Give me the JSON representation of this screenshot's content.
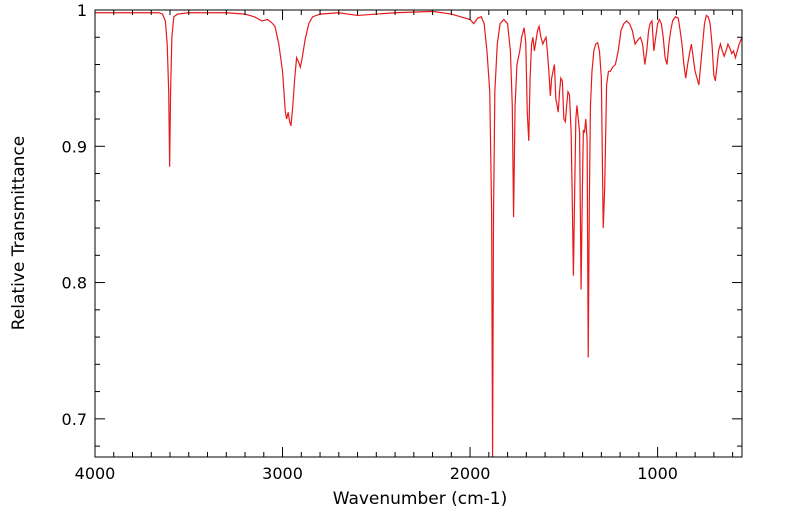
{
  "chart_data": {
    "type": "line",
    "title": "",
    "xlabel": "Wavenumber (cm-1)",
    "ylabel": "Relative Transmittance",
    "xlim": [
      4000,
      550
    ],
    "ylim": [
      0.672,
      1.0
    ],
    "x_reversed": true,
    "grid": false,
    "x_ticks": [
      4000,
      3000,
      2000,
      1000
    ],
    "x_tick_labels": [
      "4000",
      "3000",
      "2000",
      "1000"
    ],
    "y_ticks": [
      0.7,
      0.8,
      0.9,
      1.0
    ],
    "y_tick_labels": [
      "0.7",
      "0.8",
      "0.9",
      "1"
    ],
    "series": [
      {
        "color": "#e8191c",
        "points": [
          [
            4000,
            0.998
          ],
          [
            3800,
            0.998
          ],
          [
            3700,
            0.998
          ],
          [
            3660,
            0.998
          ],
          [
            3640,
            0.997
          ],
          [
            3625,
            0.992
          ],
          [
            3615,
            0.975
          ],
          [
            3607,
            0.94
          ],
          [
            3602,
            0.885
          ],
          [
            3597,
            0.94
          ],
          [
            3590,
            0.98
          ],
          [
            3580,
            0.995
          ],
          [
            3560,
            0.997
          ],
          [
            3500,
            0.998
          ],
          [
            3300,
            0.998
          ],
          [
            3200,
            0.997
          ],
          [
            3150,
            0.995
          ],
          [
            3110,
            0.992
          ],
          [
            3080,
            0.993
          ],
          [
            3060,
            0.991
          ],
          [
            3040,
            0.988
          ],
          [
            3020,
            0.975
          ],
          [
            3000,
            0.955
          ],
          [
            2985,
            0.925
          ],
          [
            2978,
            0.92
          ],
          [
            2970,
            0.925
          ],
          [
            2962,
            0.918
          ],
          [
            2955,
            0.915
          ],
          [
            2945,
            0.93
          ],
          [
            2935,
            0.95
          ],
          [
            2925,
            0.965
          ],
          [
            2915,
            0.962
          ],
          [
            2905,
            0.958
          ],
          [
            2895,
            0.965
          ],
          [
            2880,
            0.978
          ],
          [
            2860,
            0.99
          ],
          [
            2840,
            0.995
          ],
          [
            2800,
            0.997
          ],
          [
            2700,
            0.998
          ],
          [
            2600,
            0.996
          ],
          [
            2400,
            0.998
          ],
          [
            2200,
            0.999
          ],
          [
            2100,
            0.997
          ],
          [
            2050,
            0.995
          ],
          [
            2000,
            0.993
          ],
          [
            1980,
            0.99
          ],
          [
            1960,
            0.994
          ],
          [
            1940,
            0.995
          ],
          [
            1925,
            0.99
          ],
          [
            1910,
            0.97
          ],
          [
            1895,
            0.94
          ],
          [
            1885,
            0.85
          ],
          [
            1880,
            0.67
          ],
          [
            1875,
            0.85
          ],
          [
            1868,
            0.94
          ],
          [
            1855,
            0.975
          ],
          [
            1840,
            0.99
          ],
          [
            1820,
            0.993
          ],
          [
            1800,
            0.99
          ],
          [
            1785,
            0.97
          ],
          [
            1775,
            0.93
          ],
          [
            1768,
            0.848
          ],
          [
            1760,
            0.93
          ],
          [
            1750,
            0.96
          ],
          [
            1735,
            0.97
          ],
          [
            1725,
            0.98
          ],
          [
            1712,
            0.987
          ],
          [
            1703,
            0.976
          ],
          [
            1695,
            0.925
          ],
          [
            1687,
            0.904
          ],
          [
            1680,
            0.95
          ],
          [
            1672,
            0.975
          ],
          [
            1665,
            0.98
          ],
          [
            1657,
            0.97
          ],
          [
            1648,
            0.978
          ],
          [
            1640,
            0.985
          ],
          [
            1632,
            0.988
          ],
          [
            1622,
            0.98
          ],
          [
            1612,
            0.975
          ],
          [
            1603,
            0.978
          ],
          [
            1595,
            0.98
          ],
          [
            1588,
            0.97
          ],
          [
            1580,
            0.955
          ],
          [
            1572,
            0.937
          ],
          [
            1565,
            0.95
          ],
          [
            1558,
            0.955
          ],
          [
            1550,
            0.96
          ],
          [
            1543,
            0.935
          ],
          [
            1536,
            0.93
          ],
          [
            1530,
            0.925
          ],
          [
            1523,
            0.94
          ],
          [
            1516,
            0.95
          ],
          [
            1508,
            0.948
          ],
          [
            1500,
            0.92
          ],
          [
            1492,
            0.918
          ],
          [
            1485,
            0.93
          ],
          [
            1478,
            0.94
          ],
          [
            1470,
            0.938
          ],
          [
            1461,
            0.91
          ],
          [
            1455,
            0.86
          ],
          [
            1449,
            0.805
          ],
          [
            1443,
            0.86
          ],
          [
            1436,
            0.92
          ],
          [
            1430,
            0.93
          ],
          [
            1423,
            0.92
          ],
          [
            1416,
            0.91
          ],
          [
            1408,
            0.795
          ],
          [
            1402,
            0.86
          ],
          [
            1396,
            0.912
          ],
          [
            1390,
            0.91
          ],
          [
            1383,
            0.92
          ],
          [
            1376,
            0.905
          ],
          [
            1370,
            0.745
          ],
          [
            1364,
            0.86
          ],
          [
            1358,
            0.93
          ],
          [
            1350,
            0.955
          ],
          [
            1340,
            0.97
          ],
          [
            1330,
            0.975
          ],
          [
            1320,
            0.976
          ],
          [
            1310,
            0.97
          ],
          [
            1300,
            0.95
          ],
          [
            1290,
            0.84
          ],
          [
            1282,
            0.87
          ],
          [
            1272,
            0.945
          ],
          [
            1262,
            0.955
          ],
          [
            1252,
            0.955
          ],
          [
            1240,
            0.958
          ],
          [
            1225,
            0.96
          ],
          [
            1210,
            0.97
          ],
          [
            1195,
            0.985
          ],
          [
            1180,
            0.99
          ],
          [
            1165,
            0.992
          ],
          [
            1150,
            0.99
          ],
          [
            1135,
            0.985
          ],
          [
            1120,
            0.975
          ],
          [
            1105,
            0.978
          ],
          [
            1092,
            0.98
          ],
          [
            1080,
            0.975
          ],
          [
            1068,
            0.96
          ],
          [
            1058,
            0.97
          ],
          [
            1048,
            0.985
          ],
          [
            1040,
            0.99
          ],
          [
            1030,
            0.992
          ],
          [
            1020,
            0.97
          ],
          [
            1010,
            0.98
          ],
          [
            1000,
            0.99
          ],
          [
            990,
            0.993
          ],
          [
            980,
            0.99
          ],
          [
            970,
            0.98
          ],
          [
            960,
            0.965
          ],
          [
            950,
            0.96
          ],
          [
            940,
            0.975
          ],
          [
            930,
            0.985
          ],
          [
            920,
            0.992
          ],
          [
            905,
            0.995
          ],
          [
            890,
            0.994
          ],
          [
            880,
            0.985
          ],
          [
            870,
            0.975
          ],
          [
            860,
            0.96
          ],
          [
            850,
            0.95
          ],
          [
            840,
            0.96
          ],
          [
            830,
            0.968
          ],
          [
            820,
            0.975
          ],
          [
            810,
            0.965
          ],
          [
            800,
            0.955
          ],
          [
            790,
            0.95
          ],
          [
            780,
            0.945
          ],
          [
            770,
            0.96
          ],
          [
            760,
            0.975
          ],
          [
            750,
            0.99
          ],
          [
            740,
            0.996
          ],
          [
            730,
            0.995
          ],
          [
            720,
            0.99
          ],
          [
            710,
            0.975
          ],
          [
            700,
            0.952
          ],
          [
            692,
            0.948
          ],
          [
            684,
            0.958
          ],
          [
            675,
            0.97
          ],
          [
            665,
            0.975
          ],
          [
            655,
            0.97
          ],
          [
            645,
            0.966
          ],
          [
            635,
            0.97
          ],
          [
            625,
            0.975
          ],
          [
            615,
            0.972
          ],
          [
            605,
            0.968
          ],
          [
            595,
            0.97
          ],
          [
            585,
            0.965
          ],
          [
            575,
            0.97
          ],
          [
            565,
            0.975
          ],
          [
            550,
            0.98
          ]
        ]
      }
    ]
  }
}
